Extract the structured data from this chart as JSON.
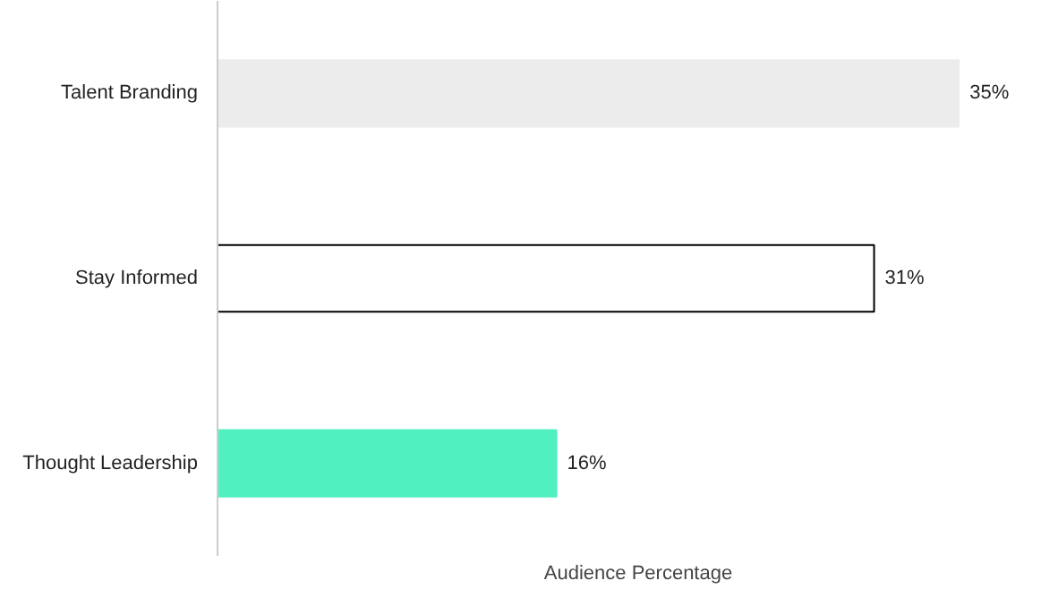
{
  "chart_data": {
    "type": "bar",
    "orientation": "horizontal",
    "xlabel": "Audience Percentage",
    "categories": [
      "Talent Branding",
      "Stay Informed",
      "Thought Leadership"
    ],
    "values": [
      35,
      31,
      16
    ],
    "colors": [
      "#ececec",
      "#ffffff",
      "#50f0c0"
    ],
    "value_labels": [
      "35%",
      "31%",
      "16%"
    ],
    "grid": false,
    "tick_labels": "y"
  }
}
